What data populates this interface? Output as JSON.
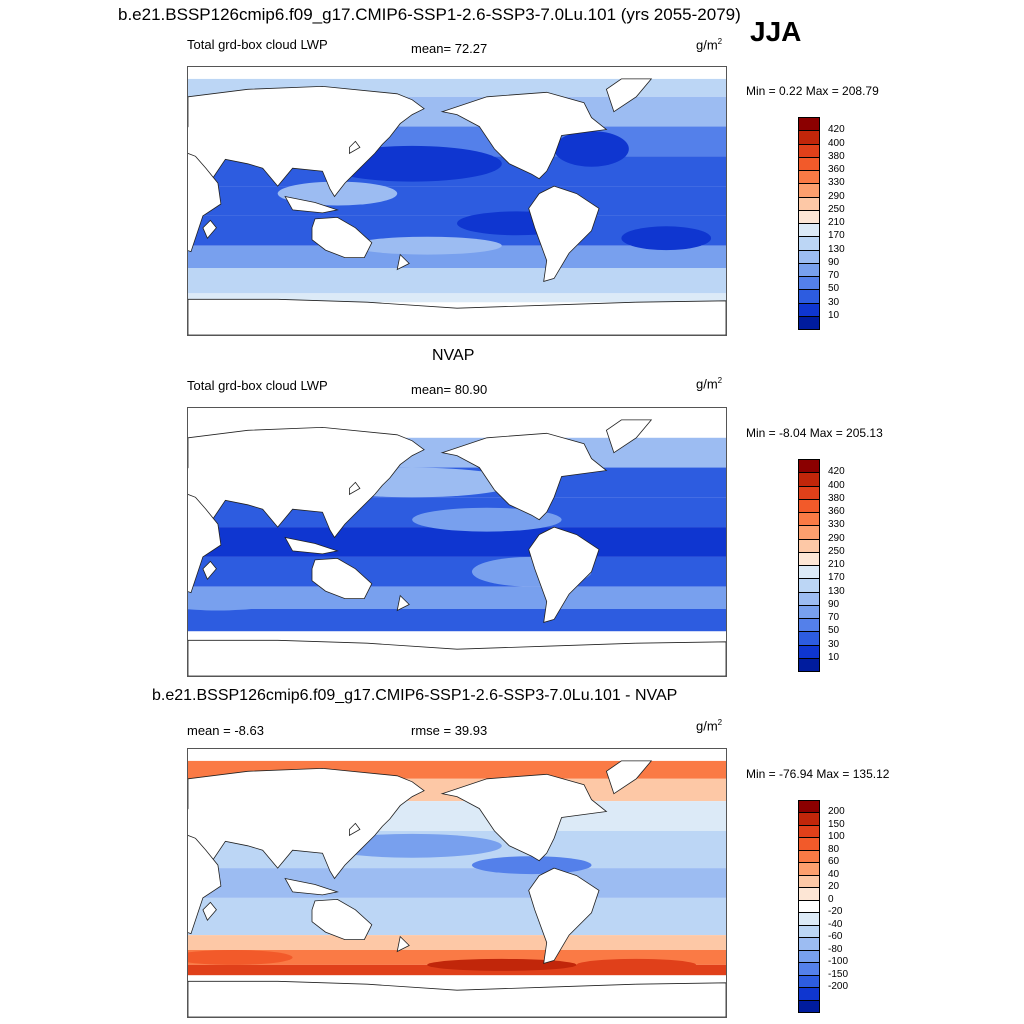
{
  "header": {
    "title": "b.e21.BSSP126cmip6.f09_g17.CMIP6-SSP1-2.6-SSP3-7.0Lu.101 (yrs 2055-2079)",
    "season": "JJA"
  },
  "panels": [
    {
      "title": "",
      "left_label": "Total grd-box cloud LWP",
      "center_label": "mean=  72.27",
      "units": "g/m",
      "units_exp": "2",
      "minmax": "Min =   0.22 Max = 208.79",
      "colorbar": {
        "labels": [
          "420",
          "400",
          "380",
          "360",
          "330",
          "290",
          "250",
          "210",
          "170",
          "130",
          "90",
          "70",
          "50",
          "30",
          "10"
        ],
        "colors": [
          "#8b0000",
          "#c1260a",
          "#e0401a",
          "#f25a2a",
          "#fa7a45",
          "#fd9f6e",
          "#fdc8a6",
          "#fde6d5",
          "#dceaf7",
          "#bcd6f5",
          "#9cbcf2",
          "#78a0ee",
          "#5480ea",
          "#2d5ce0",
          "#0f36d0",
          "#001c9e"
        ]
      }
    },
    {
      "title": "NVAP",
      "left_label": "Total grd-box cloud LWP",
      "center_label": "mean=  80.90",
      "units": "g/m",
      "units_exp": "2",
      "minmax": "Min =  -8.04 Max = 205.13",
      "colorbar": {
        "labels": [
          "420",
          "400",
          "380",
          "360",
          "330",
          "290",
          "250",
          "210",
          "170",
          "130",
          "90",
          "70",
          "50",
          "30",
          "10"
        ],
        "colors": [
          "#8b0000",
          "#c1260a",
          "#e0401a",
          "#f25a2a",
          "#fa7a45",
          "#fd9f6e",
          "#fdc8a6",
          "#fde6d5",
          "#dceaf7",
          "#bcd6f5",
          "#9cbcf2",
          "#78a0ee",
          "#5480ea",
          "#2d5ce0",
          "#0f36d0",
          "#001c9e"
        ]
      }
    },
    {
      "title": "b.e21.BSSP126cmip6.f09_g17.CMIP6-SSP1-2.6-SSP3-7.0Lu.101 - NVAP",
      "left_label": "mean =  -8.63",
      "center_label": "rmse =  39.93",
      "units": "g/m",
      "units_exp": "2",
      "minmax": "Min = -76.94 Max = 135.12",
      "colorbar": {
        "labels": [
          "200",
          "150",
          "100",
          "80",
          "60",
          "40",
          "20",
          "0",
          "-20",
          "-40",
          "-60",
          "-80",
          "-100",
          "-150",
          "-200"
        ],
        "colors": [
          "#8b0000",
          "#c1260a",
          "#e0401a",
          "#f25a2a",
          "#fa7a45",
          "#fd9f6e",
          "#fdc8a6",
          "#fde6d5",
          "#ffffff",
          "#dceaf7",
          "#bcd6f5",
          "#9cbcf2",
          "#78a0ee",
          "#5480ea",
          "#2d5ce0",
          "#0f36d0",
          "#001c9e"
        ]
      }
    }
  ]
}
